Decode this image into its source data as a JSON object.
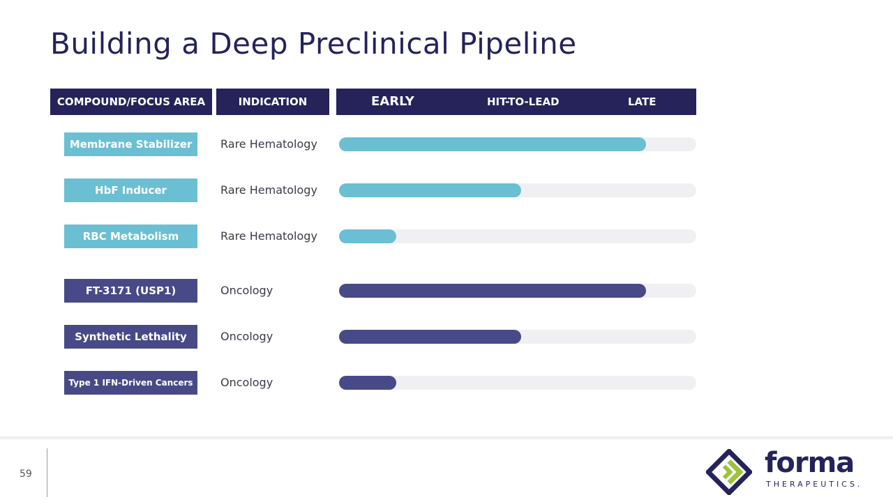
{
  "title": "Building a Deep Preclinical Pipeline",
  "headers": {
    "compound": "COMPOUND/FOCUS AREA",
    "indication": "INDICATION",
    "stages": [
      "EARLY",
      "HIT-TO-LEAD",
      "LATE"
    ]
  },
  "colors": {
    "navy": "#25235a",
    "teal": "#6bbfd3",
    "purple": "#474a86",
    "track": "#f0f0f2",
    "logo_green": "#9dc33b"
  },
  "rows": [
    {
      "compound": "Membrane Stabilizer",
      "indication": "Rare Hematology",
      "progress": 0.86,
      "color": "#6bbfd3"
    },
    {
      "compound": "HbF Inducer",
      "indication": "Rare Hematology",
      "progress": 0.51,
      "color": "#6bbfd3"
    },
    {
      "compound": "RBC Metabolism",
      "indication": "Rare Hematology",
      "progress": 0.16,
      "color": "#6bbfd3"
    },
    {
      "compound": "FT-3171 (USP1)",
      "indication": "Oncology",
      "progress": 0.86,
      "color": "#474a86"
    },
    {
      "compound": "Synthetic Lethality",
      "indication": "Oncology",
      "progress": 0.51,
      "color": "#474a86"
    },
    {
      "compound": "Type 1 IFN-Driven Cancers",
      "indication": "Oncology",
      "progress": 0.16,
      "color": "#474a86"
    }
  ],
  "footer": {
    "page_number": "59",
    "brand": "forma",
    "brand_sub": "THERAPEUTICS."
  }
}
